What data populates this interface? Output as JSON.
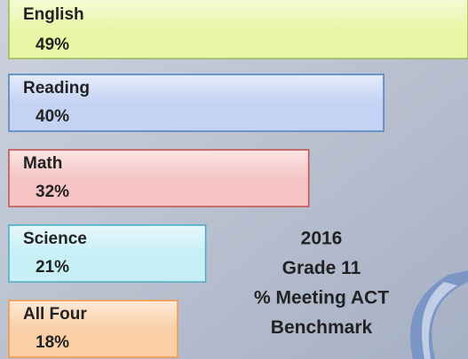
{
  "chart_data": {
    "type": "hbar",
    "title": [
      "2016",
      "Grade 11",
      "% Meeting ACT",
      "Benchmark"
    ],
    "categories": [
      "English",
      "Reading",
      "Math",
      "Science",
      "All Four"
    ],
    "values": [
      49,
      40,
      32,
      21,
      18
    ],
    "value_labels": [
      "49%",
      "40%",
      "32%",
      "21%",
      "18%"
    ],
    "colors": [
      "#e9f6a6",
      "#c4d2f4",
      "#f6c4c4",
      "#c6eff6",
      "#fbcfa6"
    ],
    "border_colors": [
      "#9bbb59",
      "#4f81bd",
      "#c0504d",
      "#4bacc6",
      "#f79646"
    ]
  }
}
